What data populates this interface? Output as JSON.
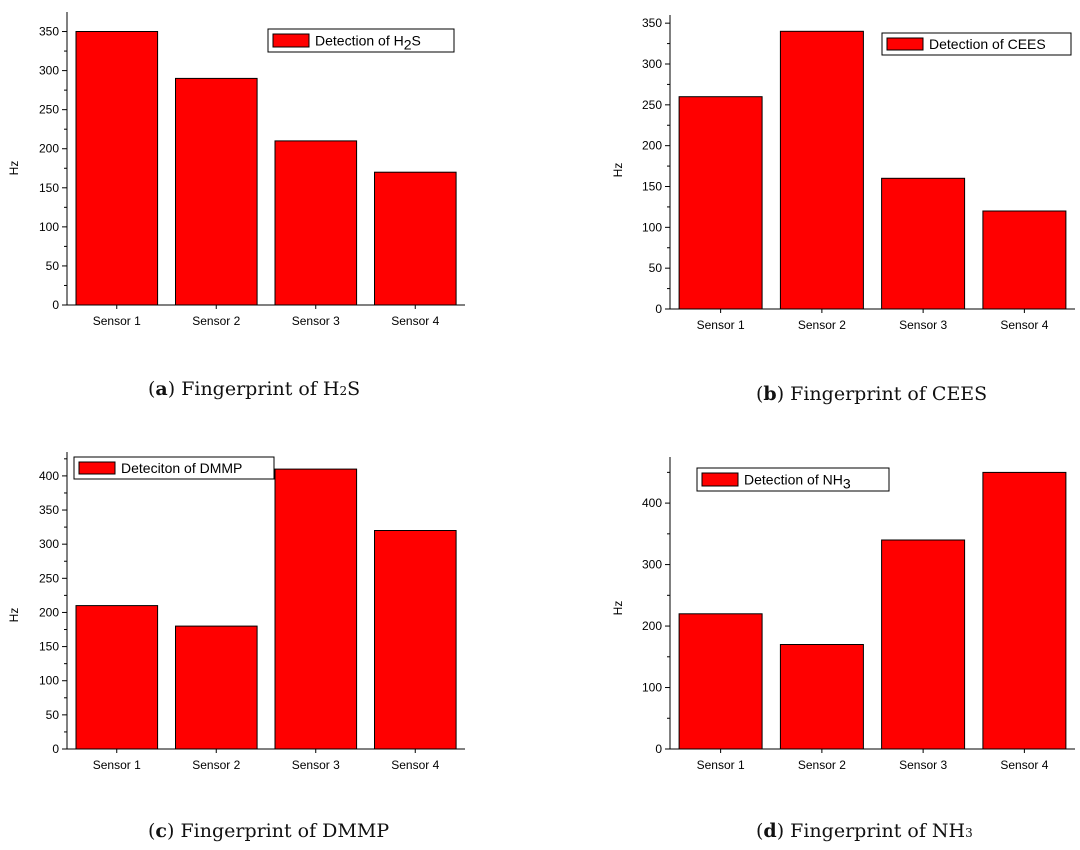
{
  "chart_data": [
    {
      "type": "bar",
      "categories": [
        "Sensor 1",
        "Sensor 2",
        "Sensor 3",
        "Sensor 4"
      ],
      "values": [
        350,
        290,
        210,
        170
      ],
      "ylabel": "Hz",
      "ylim": [
        0,
        375
      ],
      "yticks": [
        0,
        50,
        100,
        150,
        200,
        250,
        300,
        350
      ],
      "legend": {
        "text": "Detection of H",
        "sub": "2",
        "suffix": "S",
        "placement": "top-right"
      },
      "caption": {
        "letter": "a",
        "text": "Fingerprint of H",
        "sub": "2",
        "suffix": "S"
      },
      "bar_color": "#ff0000"
    },
    {
      "type": "bar",
      "categories": [
        "Sensor 1",
        "Sensor 2",
        "Sensor 3",
        "Sensor 4"
      ],
      "values": [
        260,
        340,
        160,
        120
      ],
      "ylabel": "Hz",
      "ylim": [
        0,
        360
      ],
      "yticks": [
        0,
        50,
        100,
        150,
        200,
        250,
        300,
        350
      ],
      "legend": {
        "text": "Detection of CEES",
        "sub": "",
        "suffix": "",
        "placement": "top-right"
      },
      "caption": {
        "letter": "b",
        "text": "Fingerprint of CEES",
        "sub": "",
        "suffix": ""
      },
      "bar_color": "#ff0000"
    },
    {
      "type": "bar",
      "categories": [
        "Sensor 1",
        "Sensor 2",
        "Sensor 3",
        "Sensor 4"
      ],
      "values": [
        210,
        180,
        410,
        320
      ],
      "ylabel": "Hz",
      "ylim": [
        0,
        435
      ],
      "yticks": [
        0,
        50,
        100,
        150,
        200,
        250,
        300,
        350,
        400
      ],
      "legend": {
        "text": "Deteciton of DMMP",
        "sub": "",
        "suffix": "",
        "placement": "top-left"
      },
      "caption": {
        "letter": "c",
        "text": "Fingerprint of DMMP",
        "sub": "",
        "suffix": ""
      },
      "bar_color": "#ff0000"
    },
    {
      "type": "bar",
      "categories": [
        "Sensor 1",
        "Sensor 2",
        "Sensor 3",
        "Sensor 4"
      ],
      "values": [
        220,
        170,
        340,
        450
      ],
      "ylabel": "Hz",
      "ylim": [
        0,
        475
      ],
      "yticks": [
        0,
        100,
        200,
        300,
        400
      ],
      "legend": {
        "text": "Detection of NH",
        "sub": "3",
        "suffix": "",
        "placement": "top-left"
      },
      "caption": {
        "letter": "d",
        "text": "Fingerprint of NH",
        "sub": "3",
        "suffix": ""
      },
      "bar_color": "#ff0000"
    }
  ]
}
